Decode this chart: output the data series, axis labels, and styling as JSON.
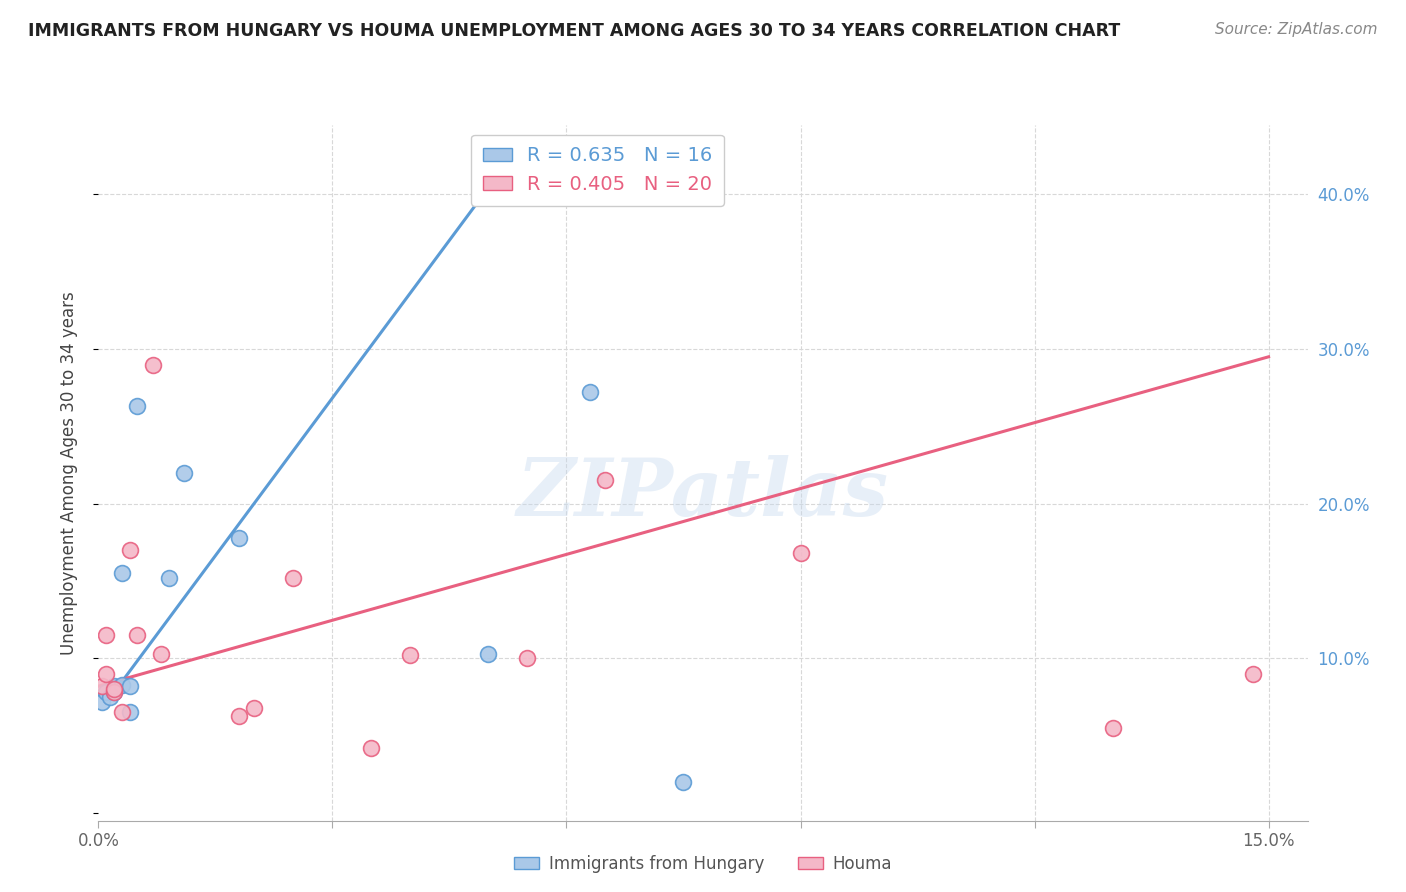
{
  "title": "IMMIGRANTS FROM HUNGARY VS HOUMA UNEMPLOYMENT AMONG AGES 30 TO 34 YEARS CORRELATION CHART",
  "source": "Source: ZipAtlas.com",
  "ylabel": "Unemployment Among Ages 30 to 34 years",
  "xlim": [
    0.0,
    0.155
  ],
  "ylim": [
    -0.005,
    0.445
  ],
  "xtick_positions": [
    0.0,
    0.03,
    0.06,
    0.09,
    0.12,
    0.15
  ],
  "xticklabels": [
    "0.0%",
    "",
    "",
    "",
    "",
    "15.0%"
  ],
  "ytick_positions": [
    0.0,
    0.1,
    0.2,
    0.3,
    0.4
  ],
  "ytick_labels_right": [
    "",
    "10.0%",
    "20.0%",
    "30.0%",
    "40.0%"
  ],
  "background_color": "#ffffff",
  "grid_color": "#d8d8d8",
  "watermark": "ZIPatlas",
  "blue_R": 0.635,
  "blue_N": 16,
  "pink_R": 0.405,
  "pink_N": 20,
  "blue_color": "#aac8e8",
  "blue_line_color": "#5b9bd5",
  "pink_color": "#f4b8c8",
  "pink_line_color": "#e86080",
  "blue_points_x": [
    0.0005,
    0.001,
    0.0015,
    0.002,
    0.002,
    0.003,
    0.003,
    0.004,
    0.004,
    0.005,
    0.009,
    0.011,
    0.018,
    0.05,
    0.063,
    0.075
  ],
  "blue_points_y": [
    0.072,
    0.078,
    0.075,
    0.078,
    0.082,
    0.083,
    0.155,
    0.065,
    0.082,
    0.263,
    0.152,
    0.22,
    0.178,
    0.103,
    0.272,
    0.02
  ],
  "pink_points_x": [
    0.0005,
    0.001,
    0.001,
    0.002,
    0.002,
    0.003,
    0.004,
    0.005,
    0.007,
    0.008,
    0.018,
    0.02,
    0.025,
    0.035,
    0.04,
    0.055,
    0.065,
    0.09,
    0.13,
    0.148
  ],
  "pink_points_y": [
    0.082,
    0.09,
    0.115,
    0.078,
    0.08,
    0.065,
    0.17,
    0.115,
    0.29,
    0.103,
    0.063,
    0.068,
    0.152,
    0.042,
    0.102,
    0.1,
    0.215,
    0.168,
    0.055,
    0.09
  ],
  "blue_line_x": [
    0.002,
    0.052
  ],
  "blue_line_y": [
    0.078,
    0.418
  ],
  "pink_line_x": [
    0.0,
    0.15
  ],
  "pink_line_y": [
    0.082,
    0.295
  ],
  "marker_size": 130
}
